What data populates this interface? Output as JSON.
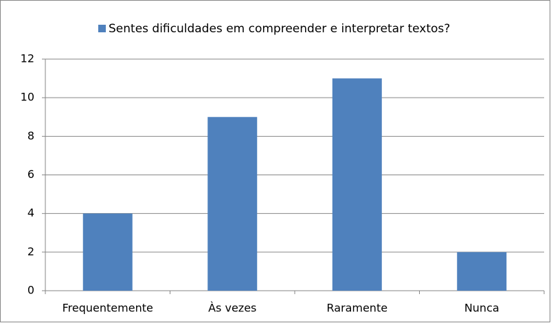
{
  "chart_data": {
    "type": "bar",
    "categories": [
      "Frequentemente",
      "Às vezes",
      "Raramente",
      "Nunca"
    ],
    "series": [
      {
        "name": "Sentes dificuldades em compreender e interpretar textos?",
        "color": "#4f81bd",
        "values": [
          4,
          9,
          11,
          2
        ]
      }
    ],
    "ylim": [
      0,
      12
    ],
    "yticks": [
      0,
      2,
      4,
      6,
      8,
      10,
      12
    ],
    "grid": true,
    "legend": "top"
  }
}
